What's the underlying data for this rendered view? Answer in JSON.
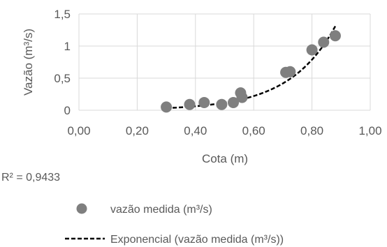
{
  "chart_data": {
    "type": "scatter",
    "xlabel": "Cota (m)",
    "ylabel": "Vazão (m³/s)",
    "xlim": [
      0,
      1
    ],
    "ylim": [
      0,
      1.5
    ],
    "x_ticks": [
      "0,00",
      "0,20",
      "0,40",
      "0,60",
      "0,80",
      "1,00"
    ],
    "y_ticks": [
      "0",
      "0,5",
      "1",
      "1,5"
    ],
    "grid": "vertical and horizontal major gridlines",
    "legend_position": "bottom",
    "series": [
      {
        "name": "vazão medida (m³/s)",
        "kind": "scatter",
        "color": "#7f7f7f",
        "points": [
          [
            0.3,
            0.05
          ],
          [
            0.38,
            0.09
          ],
          [
            0.43,
            0.12
          ],
          [
            0.49,
            0.09
          ],
          [
            0.53,
            0.12
          ],
          [
            0.555,
            0.27
          ],
          [
            0.56,
            0.2
          ],
          [
            0.71,
            0.59
          ],
          [
            0.725,
            0.6
          ],
          [
            0.8,
            0.94
          ],
          [
            0.84,
            1.06
          ],
          [
            0.88,
            1.16
          ]
        ]
      },
      {
        "name": "Exponencial (vazão medida (m³/s))",
        "kind": "trendline",
        "color": "#000000",
        "x_range": [
          0.3,
          0.88
        ],
        "coef_a": 0.0049,
        "coef_b": 6.35
      }
    ],
    "annotation": "R² = 0,9433"
  }
}
